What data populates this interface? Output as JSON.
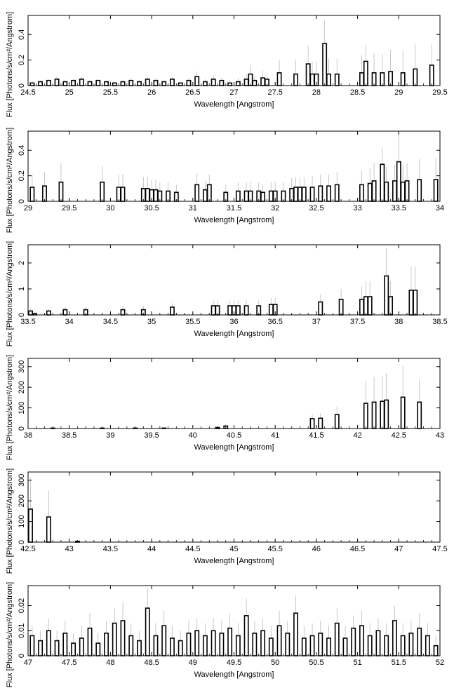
{
  "figure": {
    "xlabel": "Wavelength [Angstrom]",
    "ylabel": "Flux [Photons/s/cm²/Angstrom]"
  },
  "chart_data": [
    {
      "type": "step",
      "xlabel": "Wavelength [Angstrom]",
      "ylabel": "Flux [Photons/s/cm²/Angstrom]",
      "xlim": [
        24.5,
        29.5
      ],
      "ylim": [
        0,
        0.55
      ],
      "xticks": [
        "24.5",
        "25",
        "25.5",
        "26",
        "26.5",
        "27",
        "27.5",
        "28",
        "28.5",
        "29",
        "29.5"
      ],
      "yticks": [
        "0",
        "0.2",
        "0.4"
      ],
      "series": [
        {
          "bin_width": 0.045,
          "x": [
            24.55,
            24.65,
            24.75,
            24.85,
            24.95,
            25.05,
            25.15,
            25.25,
            25.35,
            25.45,
            25.55,
            25.65,
            25.75,
            25.85,
            25.95,
            26.05,
            26.15,
            26.25,
            26.35,
            26.45,
            26.55,
            26.65,
            26.75,
            26.85,
            26.95,
            27.05,
            27.15,
            27.2,
            27.25,
            27.35,
            27.4,
            27.55,
            27.75,
            27.9,
            27.95,
            28.0,
            28.1,
            28.15,
            28.25,
            28.55,
            28.6,
            28.7,
            28.8,
            28.9,
            29.05,
            29.2,
            29.4
          ],
          "y": [
            0.02,
            0.03,
            0.04,
            0.05,
            0.03,
            0.04,
            0.05,
            0.03,
            0.04,
            0.03,
            0.02,
            0.03,
            0.04,
            0.03,
            0.05,
            0.04,
            0.03,
            0.05,
            0.02,
            0.04,
            0.07,
            0.03,
            0.05,
            0.04,
            0.02,
            0.03,
            0.05,
            0.09,
            0.04,
            0.06,
            0.05,
            0.1,
            0.09,
            0.17,
            0.09,
            0.09,
            0.33,
            0.09,
            0.09,
            0.1,
            0.19,
            0.1,
            0.1,
            0.11,
            0.1,
            0.13,
            0.16
          ],
          "err": [
            0.01,
            0.01,
            0.01,
            0.02,
            0.01,
            0.01,
            0.02,
            0.01,
            0.01,
            0.01,
            0.01,
            0.01,
            0.02,
            0.01,
            0.02,
            0.02,
            0.01,
            0.02,
            0.01,
            0.02,
            0.04,
            0.02,
            0.03,
            0.02,
            0.02,
            0.03,
            0.04,
            0.07,
            0.03,
            0.06,
            0.05,
            0.1,
            0.11,
            0.14,
            0.1,
            0.1,
            0.18,
            0.12,
            0.12,
            0.14,
            0.13,
            0.15,
            0.15,
            0.17,
            0.17,
            0.2,
            0.16
          ]
        }
      ]
    },
    {
      "type": "step",
      "xlabel": "Wavelength [Angstrom]",
      "ylabel": "Flux [Photons/s/cm²/Angstrom]",
      "xlim": [
        29,
        34
      ],
      "ylim": [
        0,
        0.55
      ],
      "xticks": [
        "29",
        "29.5",
        "30",
        "30.5",
        "31",
        "31.5",
        "32",
        "32.5",
        "33",
        "33.5",
        "34"
      ],
      "yticks": [
        "0",
        "0.2",
        "0.4"
      ],
      "series": [
        {
          "bin_width": 0.045,
          "x": [
            29.05,
            29.2,
            29.4,
            29.9,
            30.1,
            30.15,
            30.4,
            30.45,
            30.5,
            30.55,
            30.6,
            30.7,
            30.8,
            31.05,
            31.15,
            31.2,
            31.4,
            31.55,
            31.65,
            31.7,
            31.8,
            31.85,
            31.95,
            32.0,
            32.1,
            32.2,
            32.25,
            32.3,
            32.35,
            32.45,
            32.55,
            32.65,
            32.75,
            33.05,
            33.15,
            33.2,
            33.3,
            33.35,
            33.45,
            33.5,
            33.55,
            33.6,
            33.75,
            33.95
          ],
          "y": [
            0.11,
            0.12,
            0.15,
            0.15,
            0.11,
            0.11,
            0.1,
            0.1,
            0.09,
            0.09,
            0.08,
            0.08,
            0.07,
            0.13,
            0.09,
            0.13,
            0.07,
            0.08,
            0.08,
            0.08,
            0.08,
            0.07,
            0.08,
            0.08,
            0.08,
            0.1,
            0.11,
            0.11,
            0.11,
            0.11,
            0.12,
            0.12,
            0.13,
            0.13,
            0.14,
            0.16,
            0.29,
            0.15,
            0.16,
            0.31,
            0.15,
            0.16,
            0.17,
            0.17
          ],
          "err": [
            0.1,
            0.11,
            0.15,
            0.13,
            0.1,
            0.1,
            0.09,
            0.09,
            0.08,
            0.08,
            0.07,
            0.07,
            0.06,
            0.09,
            0.07,
            0.08,
            0.06,
            0.07,
            0.07,
            0.07,
            0.07,
            0.06,
            0.07,
            0.07,
            0.07,
            0.08,
            0.08,
            0.08,
            0.08,
            0.09,
            0.09,
            0.09,
            0.1,
            0.11,
            0.12,
            0.14,
            0.13,
            0.12,
            0.13,
            0.23,
            0.13,
            0.14,
            0.16,
            0.17
          ]
        }
      ]
    },
    {
      "type": "step",
      "xlabel": "Wavelength [Angstrom]",
      "ylabel": "Flux [Photons/s/cm²/Angstrom]",
      "xlim": [
        33.5,
        38.5
      ],
      "ylim": [
        0,
        2.7
      ],
      "xticks": [
        "33.5",
        "34",
        "34.5",
        "35",
        "35.5",
        "36",
        "36.5",
        "37",
        "37.5",
        "38",
        "38.5"
      ],
      "yticks": [
        "0",
        "1",
        "2"
      ],
      "series": [
        {
          "bin_width": 0.045,
          "x": [
            33.53,
            33.58,
            33.75,
            33.95,
            34.2,
            34.65,
            34.9,
            35.25,
            35.75,
            35.8,
            35.95,
            36.0,
            36.05,
            36.15,
            36.3,
            36.45,
            36.5,
            37.05,
            37.3,
            37.55,
            37.6,
            37.65,
            37.85,
            37.9,
            38.15,
            38.2
          ],
          "y": [
            0.15,
            0.05,
            0.15,
            0.2,
            0.2,
            0.2,
            0.2,
            0.3,
            0.35,
            0.35,
            0.35,
            0.35,
            0.35,
            0.35,
            0.35,
            0.4,
            0.4,
            0.5,
            0.6,
            0.6,
            0.7,
            0.7,
            1.5,
            0.7,
            0.95,
            0.95
          ],
          "err": [
            0.1,
            0.05,
            0.1,
            0.1,
            0.1,
            0.15,
            0.15,
            0.15,
            0.2,
            0.2,
            0.2,
            0.2,
            0.2,
            0.2,
            0.2,
            0.25,
            0.25,
            0.3,
            0.4,
            0.5,
            0.6,
            0.6,
            1.1,
            0.6,
            0.9,
            0.9
          ]
        }
      ]
    },
    {
      "type": "step",
      "xlabel": "Wavelength [Angstrom]",
      "ylabel": "Flux [Photons/s/cm²/Angstrom]",
      "xlim": [
        38,
        43
      ],
      "ylim": [
        0,
        340
      ],
      "xticks": [
        "38",
        "38.5",
        "39",
        "39.5",
        "40",
        "40.5",
        "41",
        "41.5",
        "42",
        "42.5",
        "43"
      ],
      "yticks": [
        "0",
        "100",
        "200",
        "300"
      ],
      "series": [
        {
          "bin_width": 0.045,
          "x": [
            38.3,
            38.9,
            39.3,
            39.65,
            40.3,
            40.4,
            41.45,
            41.55,
            41.75,
            42.1,
            42.2,
            42.3,
            42.35,
            42.55,
            42.75
          ],
          "y": [
            2,
            2,
            2,
            2,
            5,
            12,
            48,
            50,
            68,
            122,
            128,
            132,
            138,
            152,
            128
          ],
          "err": [
            2,
            2,
            2,
            3,
            5,
            8,
            20,
            25,
            40,
            110,
            120,
            120,
            130,
            150,
            110
          ]
        }
      ]
    },
    {
      "type": "step",
      "xlabel": "Wavelength [Angstrom]",
      "ylabel": "Flux [Photons/s/cm²/Angstrom]",
      "xlim": [
        42.5,
        47.5
      ],
      "ylim": [
        0,
        340
      ],
      "xticks": [
        "42.5",
        "43",
        "43.5",
        "44",
        "44.5",
        "45",
        "45.5",
        "46",
        "46.5",
        "47",
        "47.5"
      ],
      "yticks": [
        "0",
        "100",
        "200",
        "300"
      ],
      "series": [
        {
          "bin_width": 0.045,
          "x": [
            42.53,
            42.75,
            43.1
          ],
          "y": [
            160,
            122,
            4
          ],
          "err": [
            150,
            130,
            4
          ]
        }
      ]
    },
    {
      "type": "step",
      "xlabel": "Wavelength [Angstrom]",
      "ylabel": "Flux [Photons/s/cm²/Angstrom]",
      "xlim": [
        47,
        52
      ],
      "ylim": [
        0,
        0.028
      ],
      "xticks": [
        "47",
        "47.5",
        "48",
        "48.5",
        "49",
        "49.5",
        "50",
        "50.5",
        "51",
        "51.5",
        "52"
      ],
      "yticks": [
        "0",
        "0.01",
        "0.02"
      ],
      "series": [
        {
          "bin_width": 0.045,
          "x": [
            47.05,
            47.15,
            47.25,
            47.35,
            47.45,
            47.55,
            47.65,
            47.75,
            47.85,
            47.95,
            48.05,
            48.15,
            48.25,
            48.35,
            48.45,
            48.55,
            48.65,
            48.75,
            48.85,
            48.95,
            49.05,
            49.15,
            49.25,
            49.35,
            49.45,
            49.55,
            49.65,
            49.75,
            49.85,
            49.95,
            50.05,
            50.15,
            50.25,
            50.35,
            50.45,
            50.55,
            50.65,
            50.75,
            50.85,
            50.95,
            51.05,
            51.15,
            51.25,
            51.35,
            51.45,
            51.55,
            51.65,
            51.75,
            51.85,
            51.95
          ],
          "y": [
            0.008,
            0.006,
            0.01,
            0.006,
            0.009,
            0.005,
            0.007,
            0.011,
            0.005,
            0.009,
            0.013,
            0.014,
            0.008,
            0.006,
            0.019,
            0.008,
            0.012,
            0.007,
            0.006,
            0.009,
            0.01,
            0.008,
            0.01,
            0.009,
            0.011,
            0.008,
            0.016,
            0.009,
            0.01,
            0.007,
            0.012,
            0.009,
            0.017,
            0.007,
            0.008,
            0.009,
            0.007,
            0.013,
            0.007,
            0.011,
            0.012,
            0.008,
            0.01,
            0.008,
            0.014,
            0.008,
            0.009,
            0.011,
            0.008,
            0.004
          ],
          "err": [
            0.004,
            0.004,
            0.005,
            0.004,
            0.005,
            0.004,
            0.005,
            0.006,
            0.004,
            0.005,
            0.006,
            0.007,
            0.005,
            0.004,
            0.008,
            0.005,
            0.006,
            0.005,
            0.004,
            0.005,
            0.005,
            0.005,
            0.005,
            0.005,
            0.006,
            0.005,
            0.007,
            0.005,
            0.005,
            0.005,
            0.006,
            0.005,
            0.007,
            0.005,
            0.005,
            0.005,
            0.005,
            0.006,
            0.005,
            0.005,
            0.006,
            0.005,
            0.005,
            0.005,
            0.006,
            0.005,
            0.005,
            0.006,
            0.005,
            0.004
          ]
        }
      ]
    }
  ]
}
